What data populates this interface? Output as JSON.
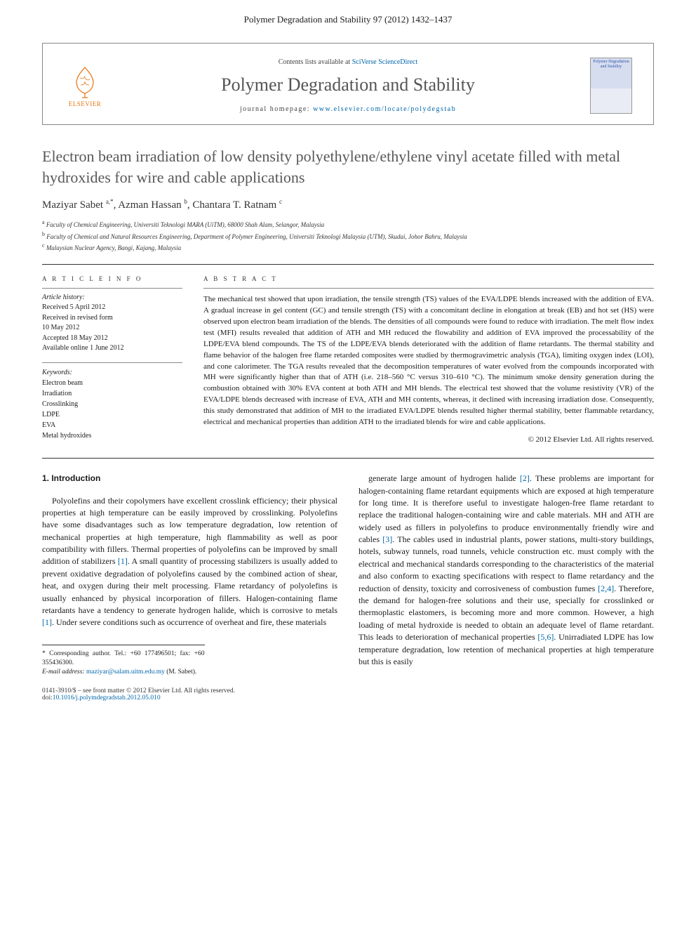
{
  "header": {
    "journal_ref": "Polymer Degradation and Stability 97 (2012) 1432–1437",
    "contents_prefix": "Contents lists available at ",
    "contents_link": "SciVerse ScienceDirect",
    "journal_name": "Polymer Degradation and Stability",
    "homepage_prefix": "journal homepage: ",
    "homepage_url": "www.elsevier.com/locate/polydegstab",
    "publisher_name": "ELSEVIER",
    "cover_title": "Polymer Degradation and Stability"
  },
  "article": {
    "title": "Electron beam irradiation of low density polyethylene/ethylene vinyl acetate filled with metal hydroxides for wire and cable applications",
    "authors_html": "Maziyar Sabet <sup>a,*</sup>, Azman Hassan <sup>b</sup>, Chantara T. Ratnam <sup>c</sup>",
    "affiliations": [
      "Faculty of Chemical Engineering, Universiti Teknologi MARA (UiTM), 68000 Shah Alam, Selangor, Malaysia",
      "Faculty of Chemical and Natural Resources Engineering, Department of Polymer Engineering, Universiti Teknologi Malaysia (UTM), Skudai, Johor Bahru, Malaysia",
      "Malaysian Nuclear Agency, Bangi, Kajang, Malaysia"
    ],
    "affil_markers": [
      "a",
      "b",
      "c"
    ]
  },
  "meta": {
    "article_info_heading": "A R T I C L E   I N F O",
    "abstract_heading": "A B S T R A C T",
    "history_label": "Article history:",
    "history": [
      "Received 5 April 2012",
      "Received in revised form",
      "10 May 2012",
      "Accepted 18 May 2012",
      "Available online 1 June 2012"
    ],
    "keywords_label": "Keywords:",
    "keywords": [
      "Electron beam",
      "Irradiation",
      "Crosslinking",
      "LDPE",
      "EVA",
      "Metal hydroxides"
    ]
  },
  "abstract": {
    "text": "The mechanical test showed that upon irradiation, the tensile strength (TS) values of the EVA/LDPE blends increased with the addition of EVA. A gradual increase in gel content (GC) and tensile strength (TS) with a concomitant decline in elongation at break (EB) and hot set (HS) were observed upon electron beam irradiation of the blends. The densities of all compounds were found to reduce with irradiation. The melt flow index test (MFI) results revealed that addition of ATH and MH reduced the flowability and addition of EVA improved the processability of the LDPE/EVA blend compounds. The TS of the LDPE/EVA blends deteriorated with the addition of flame retardants. The thermal stability and flame behavior of the halogen free flame retarded composites were studied by thermogravimetric analysis (TGA), limiting oxygen index (LOI), and cone calorimeter. The TGA results revealed that the decomposition temperatures of water evolved from the compounds incorporated with MH were significantly higher than that of ATH (i.e. 218–560 °C versus 310–610 °C). The minimum smoke density generation during the combustion obtained with 30% EVA content at both ATH and MH blends. The electrical test showed that the volume resistivity (VR) of the EVA/LDPE blends decreased with increase of EVA, ATH and MH contents, whereas, it declined with increasing irradiation dose. Consequently, this study demonstrated that addition of MH to the irradiated EVA/LDPE blends resulted higher thermal stability, better flammable retardancy, electrical and mechanical properties than addition ATH to the irradiated blends for wire and cable applications.",
    "copyright": "© 2012 Elsevier Ltd. All rights reserved."
  },
  "body": {
    "section_heading": "1. Introduction",
    "col1": "Polyolefins and their copolymers have excellent crosslink efficiency; their physical properties at high temperature can be easily improved by crosslinking. Polyolefins have some disadvantages such as low temperature degradation, low retention of mechanical properties at high temperature, high flammability as well as poor compatibility with fillers. Thermal properties of polyolefins can be improved by small addition of stabilizers [1]. A small quantity of processing stabilizers is usually added to prevent oxidative degradation of polyolefins caused by the combined action of shear, heat, and oxygen during their melt processing. Flame retardancy of polyolefins is usually enhanced by physical incorporation of fillers. Halogen-containing flame retardants have a tendency to generate hydrogen halide, which is corrosive to metals [1]. Under severe conditions such as occurrence of overheat and fire, these materials",
    "col2": "generate large amount of hydrogen halide [2]. These problems are important for halogen-containing flame retardant equipments which are exposed at high temperature for long time. It is therefore useful to investigate halogen-free flame retardant to replace the traditional halogen-containing wire and cable materials. MH and ATH are widely used as fillers in polyolefins to produce environmentally friendly wire and cables [3]. The cables used in industrial plants, power stations, multi-story buildings, hotels, subway tunnels, road tunnels, vehicle construction etc. must comply with the electrical and mechanical standards corresponding to the characteristics of the material and also conform to exacting specifications with respect to flame retardancy and the reduction of density, toxicity and corrosiveness of combustion fumes [2,4]. Therefore, the demand for halogen-free solutions and their use, specially for crosslinked or thermoplastic elastomers, is becoming more and more common. However, a high loading of metal hydroxide is needed to obtain an adequate level of flame retardant. This leads to deterioration of mechanical properties [5,6]. Unirradiated LDPE has low temperature degradation, low retention of mechanical properties at high temperature but this is easily",
    "ref_links": [
      "[1]",
      "[1]",
      "[2]",
      "[3]",
      "[2,4]",
      "[5,6]"
    ]
  },
  "footnote": {
    "corr_label": "* Corresponding author. Tel.: +60 177496501; fax: +60 355436300.",
    "email_label": "E-mail address:",
    "email": "maziyar@salam.uitm.edu.my",
    "email_suffix": " (M. Sabet)."
  },
  "footer": {
    "issn_line": "0141-3910/$ – see front matter © 2012 Elsevier Ltd. All rights reserved.",
    "doi_prefix": "doi:",
    "doi": "10.1016/j.polymdegradstab.2012.05.010"
  },
  "colors": {
    "link": "#0066aa",
    "heading_gray": "#585858",
    "elsevier_orange": "#e6730f",
    "rule": "#333333"
  }
}
